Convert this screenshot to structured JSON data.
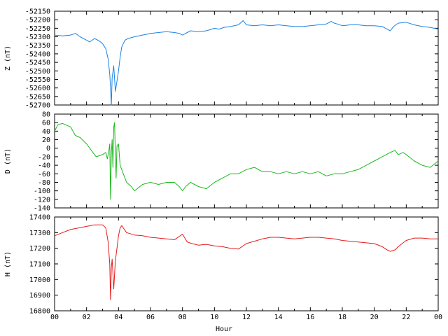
{
  "chart_data": [
    {
      "type": "line",
      "ylabel": "Z (nT)",
      "ylim": [
        -52700,
        -52150
      ],
      "yticks": [
        "-52150",
        "-52200",
        "-52250",
        "-52300",
        "-52350",
        "-52400",
        "-52450",
        "-52500",
        "-52550",
        "-52600",
        "-52650",
        "-52700"
      ],
      "xlim": [
        0,
        24
      ],
      "grid": false,
      "color": "#1a82e6",
      "series": [
        {
          "name": "",
          "x": [
            0,
            0.5,
            1,
            1.3,
            1.6,
            2.0,
            2.2,
            2.5,
            2.8,
            3.0,
            3.2,
            3.35,
            3.45,
            3.5,
            3.55,
            3.6,
            3.7,
            3.8,
            3.9,
            4.0,
            4.1,
            4.2,
            4.4,
            4.6,
            5.0,
            5.5,
            6.0,
            6.5,
            7.0,
            7.5,
            7.8,
            8.0,
            8.3,
            8.5,
            9.0,
            9.5,
            10.0,
            10.3,
            10.6,
            11.0,
            11.5,
            11.8,
            12.0,
            12.5,
            13.0,
            13.5,
            14.0,
            14.5,
            15.0,
            15.5,
            16.0,
            16.5,
            17.0,
            17.3,
            17.5,
            17.7,
            18.0,
            18.5,
            19.0,
            19.5,
            20.0,
            20.5,
            20.8,
            21.0,
            21.2,
            21.5,
            22.0,
            22.5,
            23.0,
            23.5,
            24.0
          ],
          "values": [
            -52290,
            -52295,
            -52290,
            -52280,
            -52300,
            -52320,
            -52330,
            -52310,
            -52325,
            -52340,
            -52370,
            -52430,
            -52520,
            -52600,
            -52700,
            -52540,
            -52470,
            -52620,
            -52560,
            -52500,
            -52420,
            -52360,
            -52320,
            -52310,
            -52300,
            -52290,
            -52280,
            -52275,
            -52270,
            -52275,
            -52280,
            -52290,
            -52275,
            -52265,
            -52270,
            -52265,
            -52250,
            -52255,
            -52245,
            -52240,
            -52230,
            -52205,
            -52230,
            -52235,
            -52230,
            -52235,
            -52230,
            -52235,
            -52240,
            -52240,
            -52235,
            -52230,
            -52225,
            -52210,
            -52220,
            -52225,
            -52235,
            -52230,
            -52230,
            -52235,
            -52235,
            -52240,
            -52255,
            -52265,
            -52240,
            -52220,
            -52215,
            -52230,
            -52240,
            -52245,
            -52255
          ]
        }
      ]
    },
    {
      "type": "line",
      "ylabel": "D (nT)",
      "ylim": [
        -140,
        80
      ],
      "yticks": [
        "80",
        "60",
        "40",
        "20",
        "0",
        "-20",
        "-40",
        "-60",
        "-80",
        "-100",
        "-120",
        "-140"
      ],
      "xlim": [
        0,
        24
      ],
      "grid": false,
      "color": "#1db81d",
      "series": [
        {
          "name": "",
          "x": [
            0,
            0.2,
            0.5,
            1.0,
            1.3,
            1.6,
            2.0,
            2.3,
            2.6,
            3.0,
            3.2,
            3.3,
            3.4,
            3.45,
            3.5,
            3.55,
            3.6,
            3.65,
            3.7,
            3.75,
            3.8,
            3.85,
            3.9,
            4.0,
            4.1,
            4.3,
            4.5,
            4.8,
            5.0,
            5.5,
            6.0,
            6.5,
            7.0,
            7.5,
            7.8,
            8.0,
            8.2,
            8.5,
            9.0,
            9.5,
            10.0,
            10.5,
            11.0,
            11.5,
            12.0,
            12.5,
            13.0,
            13.5,
            14.0,
            14.5,
            15.0,
            15.5,
            16.0,
            16.5,
            17.0,
            17.5,
            18.0,
            18.5,
            19.0,
            19.5,
            20.0,
            20.5,
            21.0,
            21.3,
            21.5,
            21.8,
            22.0,
            22.5,
            23.0,
            23.5,
            24.0
          ],
          "values": [
            40,
            55,
            58,
            50,
            30,
            25,
            10,
            -5,
            -20,
            -15,
            -10,
            -25,
            -5,
            10,
            -120,
            -10,
            20,
            -45,
            50,
            60,
            -10,
            -70,
            5,
            10,
            -40,
            -60,
            -80,
            -90,
            -100,
            -85,
            -80,
            -85,
            -80,
            -80,
            -90,
            -100,
            -90,
            -80,
            -90,
            -95,
            -80,
            -70,
            -60,
            -60,
            -50,
            -45,
            -55,
            -55,
            -60,
            -55,
            -60,
            -55,
            -60,
            -55,
            -65,
            -60,
            -60,
            -55,
            -50,
            -40,
            -30,
            -20,
            -10,
            -5,
            -15,
            -10,
            -15,
            -30,
            -40,
            -45,
            -30
          ]
        }
      ]
    },
    {
      "type": "line",
      "ylabel": "H (nT)",
      "ylim": [
        16800,
        17400
      ],
      "yticks": [
        "17400",
        "17300",
        "17200",
        "17100",
        "17000",
        "16900",
        "16800"
      ],
      "xlim": [
        0,
        24
      ],
      "grid": false,
      "color": "#e61a1a",
      "series": [
        {
          "name": "",
          "x": [
            0,
            0.5,
            1.0,
            1.5,
            2.0,
            2.5,
            3.0,
            3.2,
            3.35,
            3.45,
            3.5,
            3.55,
            3.6,
            3.7,
            3.8,
            3.9,
            4.0,
            4.1,
            4.2,
            4.3,
            4.5,
            5.0,
            5.5,
            6.0,
            6.5,
            7.0,
            7.5,
            8.0,
            8.3,
            8.6,
            9.0,
            9.5,
            10.0,
            10.5,
            11.0,
            11.5,
            12.0,
            12.5,
            13.0,
            13.5,
            14.0,
            14.5,
            15.0,
            15.5,
            16.0,
            16.5,
            17.0,
            17.5,
            18.0,
            18.5,
            19.0,
            19.5,
            20.0,
            20.5,
            20.8,
            21.0,
            21.3,
            21.5,
            22.0,
            22.5,
            23.0,
            23.5,
            24.0
          ],
          "values": [
            17280,
            17300,
            17320,
            17330,
            17340,
            17350,
            17350,
            17330,
            17240,
            17100,
            16870,
            17080,
            17130,
            16940,
            17120,
            17200,
            17280,
            17330,
            17345,
            17330,
            17300,
            17285,
            17280,
            17270,
            17265,
            17260,
            17255,
            17290,
            17240,
            17230,
            17220,
            17225,
            17215,
            17210,
            17200,
            17195,
            17230,
            17245,
            17260,
            17270,
            17270,
            17265,
            17260,
            17265,
            17270,
            17270,
            17265,
            17260,
            17250,
            17245,
            17240,
            17235,
            17230,
            17210,
            17190,
            17180,
            17190,
            17210,
            17250,
            17265,
            17265,
            17260,
            17260
          ]
        }
      ]
    }
  ],
  "xaxis": {
    "title": "Hour",
    "ticks": [
      "00",
      "02",
      "04",
      "06",
      "08",
      "10",
      "12",
      "14",
      "16",
      "18",
      "20",
      "22",
      "00"
    ]
  }
}
